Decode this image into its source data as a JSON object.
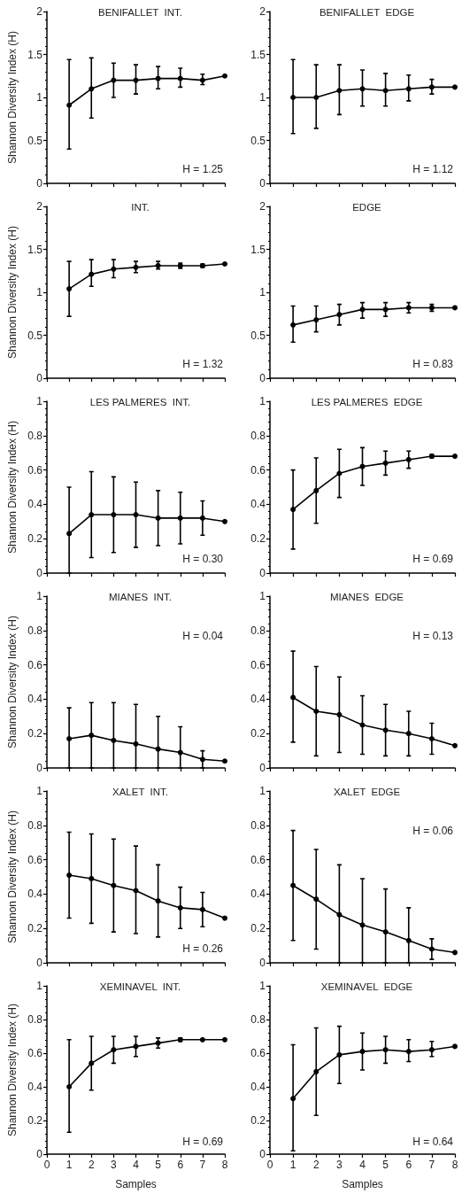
{
  "chart_data": [
    {
      "type": "line",
      "title": "BENIFALLET  INT.",
      "ylabel": "Shannon Diversity Index (H)",
      "x": [
        1,
        2,
        3,
        4,
        5,
        6,
        7,
        8
      ],
      "values": [
        0.91,
        1.1,
        1.2,
        1.2,
        1.22,
        1.22,
        1.2,
        1.25
      ],
      "errors": [
        [
          0.4,
          1.44
        ],
        [
          0.76,
          1.46
        ],
        [
          1.0,
          1.4
        ],
        [
          1.04,
          1.38
        ],
        [
          1.1,
          1.36
        ],
        [
          1.12,
          1.34
        ],
        [
          1.15,
          1.27
        ],
        null
      ],
      "color": "#000000",
      "marker": "circle",
      "xlim": [
        0,
        8
      ],
      "xticks": [
        0,
        1,
        2,
        3,
        4,
        5,
        6,
        7,
        8
      ],
      "ylim": [
        0,
        2
      ],
      "yticks": [
        0,
        0.5,
        1,
        1.5,
        2
      ],
      "tick_labels": "y",
      "annotations": [
        "H = 1.25"
      ]
    },
    {
      "type": "line",
      "title": "BENIFALLET  EDGE",
      "x": [
        1,
        2,
        3,
        4,
        5,
        6,
        7,
        8
      ],
      "values": [
        1.0,
        1.0,
        1.08,
        1.1,
        1.08,
        1.1,
        1.12,
        1.12
      ],
      "errors": [
        [
          0.58,
          1.44
        ],
        [
          0.64,
          1.38
        ],
        [
          0.8,
          1.38
        ],
        [
          0.9,
          1.32
        ],
        [
          0.9,
          1.28
        ],
        [
          0.96,
          1.26
        ],
        [
          1.04,
          1.21
        ],
        null
      ],
      "color": "#000000",
      "marker": "circle",
      "xlim": [
        0,
        8
      ],
      "xticks": [
        0,
        1,
        2,
        3,
        4,
        5,
        6,
        7,
        8
      ],
      "ylim": [
        0,
        2
      ],
      "yticks": [
        0,
        0.5,
        1,
        1.5,
        2
      ],
      "tick_labels": "y",
      "annotations": [
        "H = 1.12"
      ]
    },
    {
      "type": "line",
      "title": "INT.",
      "ylabel": "Shannon Diversity Index (H)",
      "x": [
        1,
        2,
        3,
        4,
        5,
        6,
        7,
        8
      ],
      "values": [
        1.04,
        1.21,
        1.27,
        1.29,
        1.31,
        1.31,
        1.31,
        1.33
      ],
      "errors": [
        [
          0.72,
          1.36
        ],
        [
          1.07,
          1.38
        ],
        [
          1.17,
          1.38
        ],
        [
          1.23,
          1.36
        ],
        [
          1.27,
          1.36
        ],
        [
          1.28,
          1.34
        ],
        [
          1.29,
          1.33
        ],
        null
      ],
      "color": "#000000",
      "marker": "circle",
      "xlim": [
        0,
        8
      ],
      "xticks": [
        0,
        1,
        2,
        3,
        4,
        5,
        6,
        7,
        8
      ],
      "ylim": [
        0,
        2
      ],
      "yticks": [
        0,
        0.5,
        1,
        1.5,
        2
      ],
      "tick_labels": "y",
      "annotations": [
        "H = 1.32"
      ]
    },
    {
      "type": "line",
      "title": "EDGE",
      "x": [
        1,
        2,
        3,
        4,
        5,
        6,
        7,
        8
      ],
      "values": [
        0.62,
        0.68,
        0.74,
        0.8,
        0.8,
        0.82,
        0.82,
        0.82
      ],
      "errors": [
        [
          0.42,
          0.84
        ],
        [
          0.54,
          0.84
        ],
        [
          0.62,
          0.86
        ],
        [
          0.7,
          0.88
        ],
        [
          0.72,
          0.88
        ],
        [
          0.76,
          0.88
        ],
        [
          0.78,
          0.86
        ],
        null
      ],
      "color": "#000000",
      "marker": "circle",
      "xlim": [
        0,
        8
      ],
      "xticks": [
        0,
        1,
        2,
        3,
        4,
        5,
        6,
        7,
        8
      ],
      "ylim": [
        0,
        2
      ],
      "yticks": [
        0,
        0.5,
        1,
        1.5,
        2
      ],
      "tick_labels": "y",
      "annotations": [
        "H = 0.83"
      ]
    },
    {
      "type": "line",
      "title": "LES PALMERES  INT.",
      "ylabel": "Shannon Diversity Index (H)",
      "x": [
        1,
        2,
        3,
        4,
        5,
        6,
        7,
        8
      ],
      "values": [
        0.23,
        0.34,
        0.34,
        0.34,
        0.32,
        0.32,
        0.32,
        0.3
      ],
      "errors": [
        [
          0,
          0.5
        ],
        [
          0.09,
          0.59
        ],
        [
          0.12,
          0.56
        ],
        [
          0.15,
          0.53
        ],
        [
          0.16,
          0.48
        ],
        [
          0.17,
          0.47
        ],
        [
          0.22,
          0.42
        ],
        null
      ],
      "color": "#000000",
      "marker": "circle",
      "xlim": [
        0,
        8
      ],
      "xticks": [
        0,
        1,
        2,
        3,
        4,
        5,
        6,
        7,
        8
      ],
      "ylim": [
        0,
        1
      ],
      "yticks": [
        0,
        0.2,
        0.4,
        0.6,
        0.8,
        1
      ],
      "tick_labels": "y",
      "annotations": [
        "H = 0.30"
      ]
    },
    {
      "type": "line",
      "title": "LES PALMERES  EDGE",
      "x": [
        1,
        2,
        3,
        4,
        5,
        6,
        7,
        8
      ],
      "values": [
        0.37,
        0.48,
        0.58,
        0.62,
        0.64,
        0.66,
        0.68,
        0.68
      ],
      "errors": [
        [
          0.14,
          0.6
        ],
        [
          0.29,
          0.67
        ],
        [
          0.44,
          0.72
        ],
        [
          0.51,
          0.73
        ],
        [
          0.57,
          0.71
        ],
        [
          0.61,
          0.71
        ],
        [
          0.67,
          0.69
        ],
        null
      ],
      "color": "#000000",
      "marker": "circle",
      "xlim": [
        0,
        8
      ],
      "xticks": [
        0,
        1,
        2,
        3,
        4,
        5,
        6,
        7,
        8
      ],
      "ylim": [
        0,
        1
      ],
      "yticks": [
        0,
        0.2,
        0.4,
        0.6,
        0.8,
        1
      ],
      "tick_labels": "y",
      "annotations": [
        "H = 0.69"
      ]
    },
    {
      "type": "line",
      "title": "MIANES  INT.",
      "ylabel": "Shannon Diversity Index (H)",
      "x": [
        1,
        2,
        3,
        4,
        5,
        6,
        7,
        8
      ],
      "values": [
        0.17,
        0.19,
        0.16,
        0.14,
        0.11,
        0.09,
        0.05,
        0.04
      ],
      "errors": [
        [
          0,
          0.35
        ],
        [
          0,
          0.38
        ],
        [
          0,
          0.38
        ],
        [
          0,
          0.37
        ],
        [
          0,
          0.3
        ],
        [
          0,
          0.24
        ],
        [
          0,
          0.1
        ],
        null
      ],
      "color": "#000000",
      "marker": "circle",
      "xlim": [
        0,
        8
      ],
      "xticks": [
        0,
        1,
        2,
        3,
        4,
        5,
        6,
        7,
        8
      ],
      "ylim": [
        0,
        1
      ],
      "yticks": [
        0,
        0.2,
        0.4,
        0.6,
        0.8,
        1
      ],
      "tick_labels": "y",
      "annotations": [
        "H = 0.04"
      ]
    },
    {
      "type": "line",
      "title": "MIANES  EDGE",
      "x": [
        1,
        2,
        3,
        4,
        5,
        6,
        7,
        8
      ],
      "values": [
        0.41,
        0.33,
        0.31,
        0.25,
        0.22,
        0.2,
        0.17,
        0.13
      ],
      "errors": [
        [
          0.15,
          0.68
        ],
        [
          0.07,
          0.59
        ],
        [
          0.09,
          0.53
        ],
        [
          0.08,
          0.42
        ],
        [
          0.07,
          0.37
        ],
        [
          0.07,
          0.33
        ],
        [
          0.08,
          0.26
        ],
        null
      ],
      "color": "#000000",
      "marker": "circle",
      "xlim": [
        0,
        8
      ],
      "xticks": [
        0,
        1,
        2,
        3,
        4,
        5,
        6,
        7,
        8
      ],
      "ylim": [
        0,
        1
      ],
      "yticks": [
        0,
        0.2,
        0.4,
        0.6,
        0.8,
        1
      ],
      "tick_labels": "y",
      "annotations": [
        "H = 0.13"
      ]
    },
    {
      "type": "line",
      "title": "XALET  INT.",
      "ylabel": "Shannon Diversity Index (H)",
      "x": [
        1,
        2,
        3,
        4,
        5,
        6,
        7,
        8
      ],
      "values": [
        0.51,
        0.49,
        0.45,
        0.42,
        0.36,
        0.32,
        0.31,
        0.26
      ],
      "errors": [
        [
          0.26,
          0.76
        ],
        [
          0.23,
          0.75
        ],
        [
          0.18,
          0.72
        ],
        [
          0.17,
          0.68
        ],
        [
          0.15,
          0.57
        ],
        [
          0.2,
          0.44
        ],
        [
          0.21,
          0.41
        ],
        null
      ],
      "color": "#000000",
      "marker": "circle",
      "xlim": [
        0,
        8
      ],
      "xticks": [
        0,
        1,
        2,
        3,
        4,
        5,
        6,
        7,
        8
      ],
      "ylim": [
        0,
        1
      ],
      "yticks": [
        0,
        0.2,
        0.4,
        0.6,
        0.8,
        1
      ],
      "tick_labels": "y",
      "annotations": [
        "H = 0.26"
      ]
    },
    {
      "type": "line",
      "title": "XALET  EDGE",
      "x": [
        1,
        2,
        3,
        4,
        5,
        6,
        7,
        8
      ],
      "values": [
        0.45,
        0.37,
        0.28,
        0.22,
        0.18,
        0.13,
        0.08,
        0.06
      ],
      "errors": [
        [
          0.13,
          0.77
        ],
        [
          0.08,
          0.66
        ],
        [
          0,
          0.57
        ],
        [
          0,
          0.49
        ],
        [
          0,
          0.43
        ],
        [
          0,
          0.32
        ],
        [
          0.02,
          0.14
        ],
        null
      ],
      "color": "#000000",
      "marker": "circle",
      "xlim": [
        0,
        8
      ],
      "xticks": [
        0,
        1,
        2,
        3,
        4,
        5,
        6,
        7,
        8
      ],
      "ylim": [
        0,
        1
      ],
      "yticks": [
        0,
        0.2,
        0.4,
        0.6,
        0.8,
        1
      ],
      "tick_labels": "y",
      "annotations": [
        "H = 0.06"
      ]
    },
    {
      "type": "line",
      "title": "XEMINAVEL  INT.",
      "ylabel": "Shannon Diversity Index (H)",
      "xlabel": "Samples",
      "x": [
        1,
        2,
        3,
        4,
        5,
        6,
        7,
        8
      ],
      "values": [
        0.4,
        0.54,
        0.62,
        0.64,
        0.66,
        0.68,
        0.68,
        0.68
      ],
      "errors": [
        [
          0.13,
          0.68
        ],
        [
          0.38,
          0.7
        ],
        [
          0.54,
          0.7
        ],
        [
          0.58,
          0.7
        ],
        [
          0.63,
          0.69
        ],
        [
          0.67,
          0.69
        ],
        null,
        null
      ],
      "color": "#000000",
      "marker": "circle",
      "xlim": [
        0,
        8
      ],
      "xticks": [
        0,
        1,
        2,
        3,
        4,
        5,
        6,
        7,
        8
      ],
      "ylim": [
        0,
        1
      ],
      "yticks": [
        0,
        0.2,
        0.4,
        0.6,
        0.8,
        1
      ],
      "annotations": [
        "H = 0.69"
      ]
    },
    {
      "type": "line",
      "title": "XEMINAVEL  EDGE",
      "xlabel": "Samples",
      "x": [
        1,
        2,
        3,
        4,
        5,
        6,
        7,
        8
      ],
      "values": [
        0.33,
        0.49,
        0.59,
        0.61,
        0.62,
        0.61,
        0.62,
        0.64
      ],
      "errors": [
        [
          0.02,
          0.65
        ],
        [
          0.23,
          0.75
        ],
        [
          0.42,
          0.76
        ],
        [
          0.5,
          0.72
        ],
        [
          0.54,
          0.7
        ],
        [
          0.55,
          0.68
        ],
        [
          0.58,
          0.67
        ],
        null
      ],
      "color": "#000000",
      "marker": "circle",
      "xlim": [
        0,
        8
      ],
      "xticks": [
        0,
        1,
        2,
        3,
        4,
        5,
        6,
        7,
        8
      ],
      "ylim": [
        0,
        1
      ],
      "yticks": [
        0,
        0.2,
        0.4,
        0.6,
        0.8,
        1
      ],
      "annotations": [
        "H = 0.64"
      ]
    }
  ]
}
